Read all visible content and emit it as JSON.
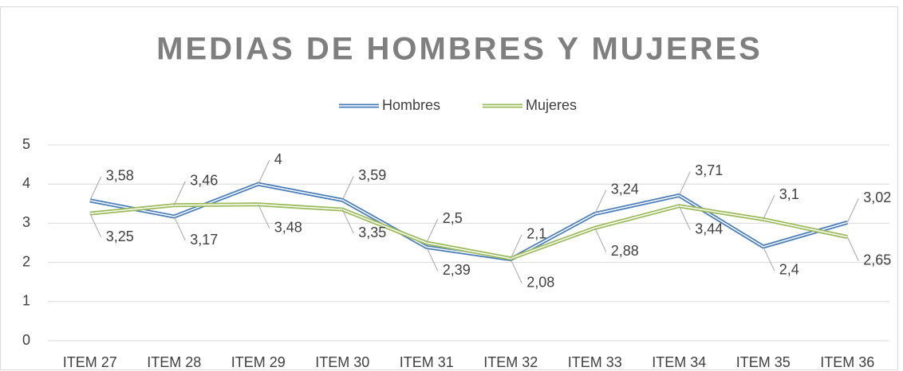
{
  "chart_data": {
    "type": "line",
    "title": "MEDIAS DE HOMBRES Y MUJERES",
    "categories": [
      "ITEM 27",
      "ITEM 28",
      "ITEM 29",
      "ITEM 30",
      "ITEM 31",
      "ITEM 32",
      "ITEM 33",
      "ITEM 34",
      "ITEM 35",
      "ITEM 36"
    ],
    "series": [
      {
        "name": "Hombres",
        "color": "#4a7ebb",
        "values": [
          3.58,
          3.17,
          4,
          3.59,
          2.39,
          2.08,
          3.24,
          3.71,
          2.4,
          3.02
        ],
        "value_labels": [
          "3,58",
          "3,17",
          "4",
          "3,59",
          "2,39",
          "2,08",
          "3,24",
          "3,71",
          "2,4",
          "3,02"
        ]
      },
      {
        "name": "Mujeres",
        "color": "#9bbb59",
        "values": [
          3.25,
          3.46,
          3.48,
          3.35,
          2.5,
          2.1,
          2.88,
          3.44,
          3.1,
          2.65
        ],
        "value_labels": [
          "3,25",
          "3,46",
          "3,48",
          "3,35",
          "2,5",
          "2,1",
          "2,88",
          "3,44",
          "3,1",
          "2,65"
        ]
      }
    ],
    "ylim": [
      0,
      5
    ],
    "yticks": [
      0,
      1,
      2,
      3,
      4,
      5
    ],
    "grid": true,
    "legend": "top"
  }
}
